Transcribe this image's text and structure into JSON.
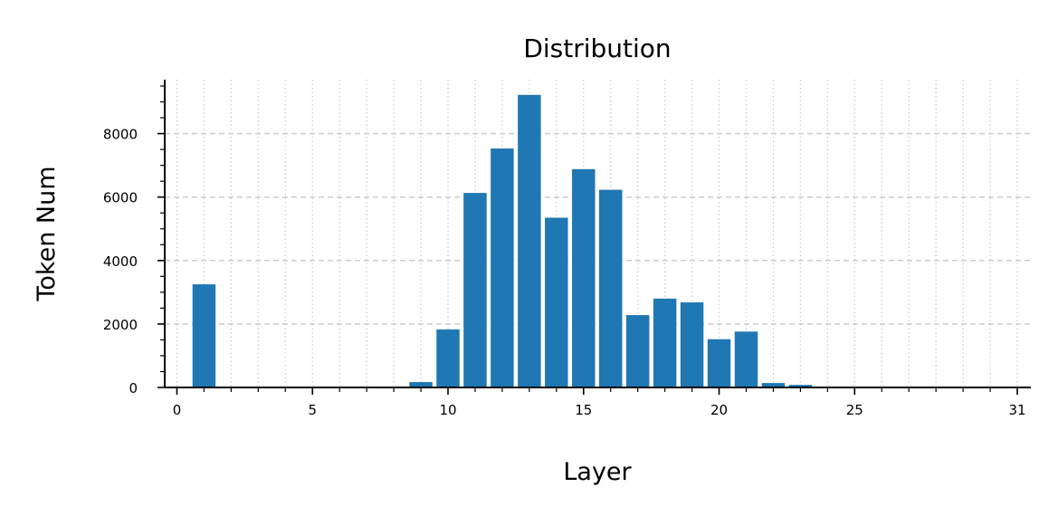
{
  "chart_data": {
    "type": "bar",
    "title": "Distribution",
    "xlabel": "Layer",
    "ylabel": "Token Num",
    "x": [
      0,
      1,
      2,
      3,
      4,
      5,
      6,
      7,
      8,
      9,
      10,
      11,
      12,
      13,
      14,
      15,
      16,
      17,
      18,
      19,
      20,
      21,
      22,
      23,
      24,
      25,
      26,
      27,
      28,
      29,
      30,
      31
    ],
    "values": [
      0,
      3250,
      0,
      0,
      0,
      0,
      0,
      0,
      0,
      170,
      1830,
      6130,
      7530,
      9220,
      5350,
      6880,
      6230,
      2280,
      2800,
      2680,
      1520,
      1760,
      140,
      80,
      0,
      0,
      0,
      0,
      0,
      0,
      0,
      0
    ],
    "xticks": [
      0,
      5,
      10,
      15,
      20,
      25,
      31
    ],
    "yticks": [
      0,
      2000,
      4000,
      6000,
      8000
    ],
    "xlim": [
      -0.45,
      31.5
    ],
    "ylim": [
      0,
      9700
    ],
    "bar_color": "#1f77b4",
    "grid": {
      "y": "dashed",
      "x": "dotted"
    }
  }
}
